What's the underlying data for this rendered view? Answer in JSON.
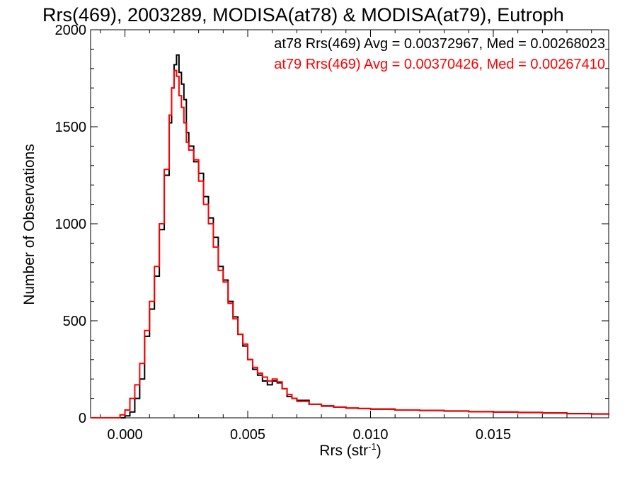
{
  "chart_data": {
    "type": "line",
    "title": "Rrs(469), 2003289, MODISA(at78) & MODISA(at79), Eutroph",
    "xlabel_main": "Rrs (str",
    "xlabel_sup": "-1",
    "xlabel_end": ")",
    "ylabel": "Number of Observations",
    "xlim": [
      -0.0014,
      0.0197
    ],
    "ylim": [
      0,
      2000
    ],
    "x_ticks": [
      0.0,
      0.005,
      0.01,
      0.015
    ],
    "x_tick_labels": [
      "0.000",
      "0.005",
      "0.010",
      "0.015"
    ],
    "y_ticks": [
      0,
      500,
      1000,
      1500,
      2000
    ],
    "y_tick_labels": [
      "0",
      "500",
      "1000",
      "1500",
      "2000"
    ],
    "grid": false,
    "legend_placement": "top-right",
    "series": [
      {
        "name": "at78",
        "legend_text": "at78 Rrs(469) Avg = 0.00372967, Med = 0.00268023",
        "color": "#000000",
        "points": [
          [
            -0.0014,
            0
          ],
          [
            -0.0004,
            0
          ],
          [
            0.0,
            10
          ],
          [
            0.0002,
            30
          ],
          [
            0.0004,
            100
          ],
          [
            0.0006,
            200
          ],
          [
            0.0008,
            420
          ],
          [
            0.001,
            560
          ],
          [
            0.0012,
            730
          ],
          [
            0.0014,
            970
          ],
          [
            0.0016,
            1250
          ],
          [
            0.0018,
            1520
          ],
          [
            0.0019,
            1700
          ],
          [
            0.002,
            1820
          ],
          [
            0.0021,
            1870
          ],
          [
            0.0022,
            1780
          ],
          [
            0.0023,
            1720
          ],
          [
            0.0024,
            1640
          ],
          [
            0.0025,
            1470
          ],
          [
            0.0026,
            1400
          ],
          [
            0.0028,
            1320
          ],
          [
            0.003,
            1260
          ],
          [
            0.0032,
            1140
          ],
          [
            0.0034,
            1030
          ],
          [
            0.0036,
            930
          ],
          [
            0.0038,
            780
          ],
          [
            0.004,
            710
          ],
          [
            0.0042,
            600
          ],
          [
            0.0044,
            520
          ],
          [
            0.0046,
            430
          ],
          [
            0.0048,
            370
          ],
          [
            0.005,
            300
          ],
          [
            0.0052,
            250
          ],
          [
            0.0054,
            220
          ],
          [
            0.0056,
            190
          ],
          [
            0.0058,
            170
          ],
          [
            0.006,
            190
          ],
          [
            0.0062,
            180
          ],
          [
            0.0064,
            150
          ],
          [
            0.0066,
            110
          ],
          [
            0.0068,
            100
          ],
          [
            0.007,
            90
          ],
          [
            0.0075,
            70
          ],
          [
            0.008,
            60
          ],
          [
            0.0085,
            55
          ],
          [
            0.009,
            50
          ],
          [
            0.0095,
            48
          ],
          [
            0.01,
            45
          ],
          [
            0.011,
            40
          ],
          [
            0.012,
            38
          ],
          [
            0.013,
            35
          ],
          [
            0.014,
            32
          ],
          [
            0.015,
            30
          ],
          [
            0.016,
            28
          ],
          [
            0.017,
            25
          ],
          [
            0.018,
            22
          ],
          [
            0.019,
            20
          ],
          [
            0.0197,
            15
          ]
        ]
      },
      {
        "name": "at79",
        "legend_text": "at79 Rrs(469) Avg = 0.00370426, Med = 0.00267410",
        "color": "#ff0000",
        "points": [
          [
            -0.0014,
            0
          ],
          [
            -0.0006,
            0
          ],
          [
            -0.0002,
            15
          ],
          [
            0.0,
            40
          ],
          [
            0.0002,
            100
          ],
          [
            0.0004,
            170
          ],
          [
            0.0006,
            280
          ],
          [
            0.0008,
            450
          ],
          [
            0.001,
            600
          ],
          [
            0.0012,
            780
          ],
          [
            0.0014,
            1000
          ],
          [
            0.0016,
            1280
          ],
          [
            0.0018,
            1560
          ],
          [
            0.0019,
            1700
          ],
          [
            0.002,
            1790
          ],
          [
            0.0021,
            1760
          ],
          [
            0.0022,
            1660
          ],
          [
            0.0023,
            1600
          ],
          [
            0.0024,
            1520
          ],
          [
            0.0025,
            1420
          ],
          [
            0.0026,
            1380
          ],
          [
            0.0028,
            1330
          ],
          [
            0.003,
            1220
          ],
          [
            0.0032,
            1100
          ],
          [
            0.0034,
            1000
          ],
          [
            0.0036,
            880
          ],
          [
            0.0038,
            760
          ],
          [
            0.004,
            700
          ],
          [
            0.0042,
            590
          ],
          [
            0.0044,
            510
          ],
          [
            0.0046,
            430
          ],
          [
            0.0048,
            380
          ],
          [
            0.005,
            300
          ],
          [
            0.0052,
            260
          ],
          [
            0.0054,
            230
          ],
          [
            0.0056,
            210
          ],
          [
            0.0058,
            190
          ],
          [
            0.006,
            200
          ],
          [
            0.0062,
            185
          ],
          [
            0.0064,
            150
          ],
          [
            0.0066,
            120
          ],
          [
            0.0068,
            100
          ],
          [
            0.007,
            85
          ],
          [
            0.0075,
            70
          ],
          [
            0.008,
            62
          ],
          [
            0.0085,
            55
          ],
          [
            0.009,
            50
          ],
          [
            0.0095,
            48
          ],
          [
            0.01,
            44
          ],
          [
            0.011,
            40
          ],
          [
            0.012,
            38
          ],
          [
            0.013,
            34
          ],
          [
            0.014,
            31
          ],
          [
            0.015,
            29
          ],
          [
            0.016,
            27
          ],
          [
            0.017,
            24
          ],
          [
            0.018,
            21
          ],
          [
            0.019,
            19
          ],
          [
            0.0197,
            14
          ]
        ]
      }
    ]
  }
}
